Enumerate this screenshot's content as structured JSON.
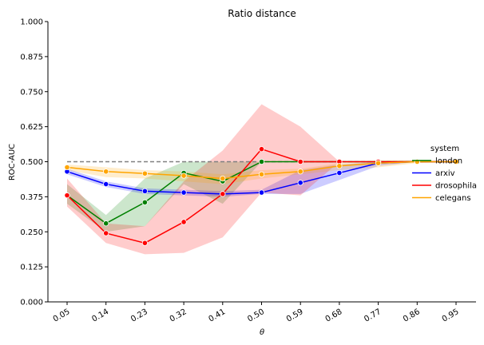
{
  "chart_data": {
    "type": "line",
    "title": "Ratio distance",
    "xlabel": "θ",
    "ylabel": "ROC-AUC",
    "x": [
      "0.05",
      "0.14",
      "0.23",
      "0.32",
      "0.41",
      "0.50",
      "0.59",
      "0.68",
      "0.77",
      "0.86",
      "0.95"
    ],
    "ylim": [
      0,
      1
    ],
    "yticks": [
      "0.000",
      "0.125",
      "0.250",
      "0.375",
      "0.500",
      "0.625",
      "0.750",
      "0.875",
      "1.000"
    ],
    "reference_line": 0.5,
    "grid": false,
    "legend": {
      "title": "system",
      "placement": "right"
    },
    "series": [
      {
        "name": "london",
        "color": "#008000",
        "values": [
          0.38,
          0.28,
          0.355,
          0.46,
          0.43,
          0.5,
          0.5,
          0.5,
          0.5,
          0.5,
          0.5
        ],
        "lower": [
          0.35,
          0.25,
          0.27,
          0.42,
          0.35,
          0.5,
          0.5,
          0.5,
          0.5,
          0.5,
          0.5
        ],
        "upper": [
          0.42,
          0.31,
          0.44,
          0.5,
          0.5,
          0.5,
          0.5,
          0.5,
          0.5,
          0.5,
          0.5
        ]
      },
      {
        "name": "arxiv",
        "color": "#0000ff",
        "values": [
          0.465,
          0.42,
          0.395,
          0.39,
          0.385,
          0.39,
          0.425,
          0.46,
          0.495,
          0.5,
          0.5
        ],
        "lower": [
          0.455,
          0.41,
          0.385,
          0.38,
          0.375,
          0.385,
          0.385,
          0.435,
          0.485,
          0.5,
          0.5
        ],
        "upper": [
          0.475,
          0.43,
          0.405,
          0.4,
          0.395,
          0.4,
          0.47,
          0.49,
          0.5,
          0.5,
          0.5
        ]
      },
      {
        "name": "drosophila",
        "color": "#ff0000",
        "values": [
          0.38,
          0.245,
          0.21,
          0.285,
          0.385,
          0.545,
          0.5,
          0.5,
          0.5,
          0.5,
          0.5
        ],
        "lower": [
          0.34,
          0.21,
          0.17,
          0.175,
          0.23,
          0.39,
          0.38,
          0.5,
          0.5,
          0.5,
          0.5
        ],
        "upper": [
          0.44,
          0.28,
          0.27,
          0.43,
          0.54,
          0.705,
          0.625,
          0.5,
          0.5,
          0.5,
          0.5
        ]
      },
      {
        "name": "celegans",
        "color": "#ffa500",
        "values": [
          0.48,
          0.465,
          0.458,
          0.45,
          0.44,
          0.455,
          0.465,
          0.485,
          0.495,
          0.5,
          0.5
        ],
        "lower": [
          0.47,
          0.445,
          0.44,
          0.43,
          0.42,
          0.44,
          0.455,
          0.47,
          0.48,
          0.495,
          0.5
        ],
        "upper": [
          0.49,
          0.48,
          0.47,
          0.465,
          0.455,
          0.47,
          0.475,
          0.495,
          0.505,
          0.505,
          0.5
        ]
      }
    ]
  }
}
